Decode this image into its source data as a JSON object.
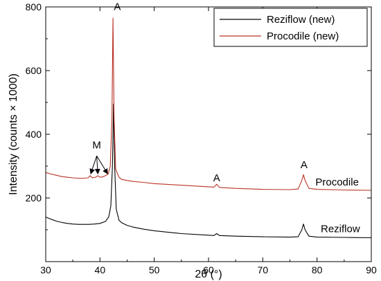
{
  "chart_data": {
    "type": "line",
    "xlabel": "2θ (°)",
    "ylabel": "Intensity (counts × 1000)",
    "xlim": [
      30,
      90
    ],
    "ylim": [
      0,
      800
    ],
    "x_ticks": [
      30,
      40,
      50,
      60,
      70,
      80,
      90
    ],
    "y_ticks": [
      200,
      400,
      600,
      800
    ],
    "legend_position": "top-right",
    "series": [
      {
        "name": "Reziflow (new)",
        "color": "#000000",
        "label": "Reziflow",
        "points": [
          [
            30,
            140
          ],
          [
            31,
            133
          ],
          [
            32,
            127
          ],
          [
            33,
            123
          ],
          [
            34,
            120
          ],
          [
            35,
            118
          ],
          [
            36,
            117
          ],
          [
            37,
            117
          ],
          [
            38,
            117
          ],
          [
            39,
            118
          ],
          [
            40,
            120
          ],
          [
            41,
            126
          ],
          [
            41.6,
            140
          ],
          [
            42,
            175
          ],
          [
            42.3,
            300
          ],
          [
            42.5,
            495
          ],
          [
            42.7,
            300
          ],
          [
            43,
            165
          ],
          [
            43.5,
            130
          ],
          [
            44,
            122
          ],
          [
            45,
            114
          ],
          [
            46,
            109
          ],
          [
            48,
            102
          ],
          [
            50,
            97
          ],
          [
            55,
            88
          ],
          [
            60,
            83
          ],
          [
            61,
            82
          ],
          [
            61.5,
            88
          ],
          [
            62,
            82
          ],
          [
            65,
            80
          ],
          [
            70,
            78
          ],
          [
            75,
            77
          ],
          [
            76.5,
            78
          ],
          [
            77.2,
            100
          ],
          [
            77.5,
            118
          ],
          [
            77.8,
            100
          ],
          [
            78.5,
            80
          ],
          [
            80,
            77
          ],
          [
            85,
            76
          ],
          [
            90,
            75
          ]
        ]
      },
      {
        "name": "Procodile (new)",
        "color": "#b83224",
        "label": "Procodile",
        "points": [
          [
            30,
            280
          ],
          [
            31,
            275
          ],
          [
            32,
            271
          ],
          [
            33,
            267
          ],
          [
            34,
            265
          ],
          [
            35,
            263
          ],
          [
            36,
            262
          ],
          [
            37,
            262
          ],
          [
            37.8,
            263
          ],
          [
            38.2,
            270
          ],
          [
            38.6,
            263
          ],
          [
            39.2,
            265
          ],
          [
            39.6,
            270
          ],
          [
            40,
            265
          ],
          [
            40.5,
            266
          ],
          [
            41,
            270
          ],
          [
            41.5,
            275
          ],
          [
            41.9,
            300
          ],
          [
            42.2,
            450
          ],
          [
            42.4,
            765
          ],
          [
            42.6,
            450
          ],
          [
            42.9,
            290
          ],
          [
            43.5,
            265
          ],
          [
            44,
            258
          ],
          [
            45,
            255
          ],
          [
            46,
            252
          ],
          [
            48,
            249
          ],
          [
            50,
            245
          ],
          [
            55,
            240
          ],
          [
            60,
            235
          ],
          [
            61,
            234
          ],
          [
            61.5,
            243
          ],
          [
            62,
            233
          ],
          [
            65,
            230
          ],
          [
            70,
            227
          ],
          [
            75,
            226
          ],
          [
            76.5,
            228
          ],
          [
            77.2,
            255
          ],
          [
            77.5,
            273
          ],
          [
            77.8,
            255
          ],
          [
            78.5,
            230
          ],
          [
            80,
            227
          ],
          [
            85,
            225
          ],
          [
            90,
            224
          ]
        ]
      }
    ],
    "annotations": [
      {
        "text": "A",
        "x": 43.2,
        "y": 790
      },
      {
        "text": "A",
        "x": 61.5,
        "y": 252
      },
      {
        "text": "A",
        "x": 77.6,
        "y": 293
      },
      {
        "text": "M",
        "x": 39.4,
        "y": 355
      },
      {
        "text": "Procodile",
        "x": 83.7,
        "y": 239
      },
      {
        "text": "Reziflow",
        "x": 84.3,
        "y": 92
      }
    ],
    "arrows": [
      {
        "from": [
          39.4,
          332
        ],
        "to": [
          38.3,
          276
        ]
      },
      {
        "from": [
          39.4,
          332
        ],
        "to": [
          39.6,
          276
        ]
      },
      {
        "from": [
          39.4,
          332
        ],
        "to": [
          41.4,
          276
        ]
      }
    ]
  }
}
